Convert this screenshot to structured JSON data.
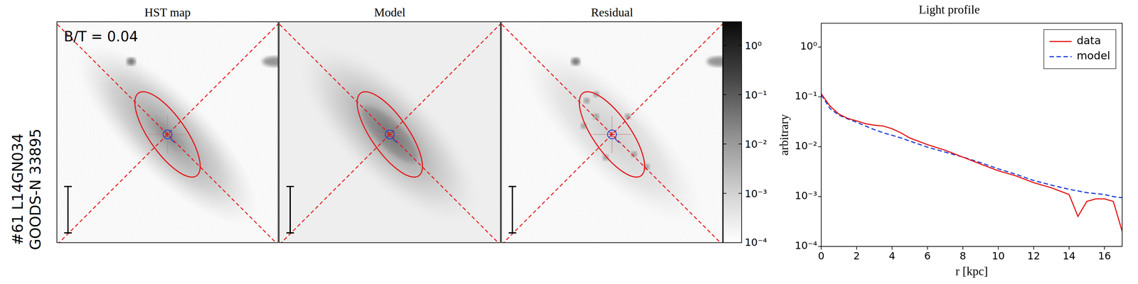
{
  "figure": {
    "row_label": [
      "#61  L14GN034",
      "GOODS-N 33895"
    ],
    "panels": [
      {
        "title": "HST map",
        "annotation": "B/T = 0.04"
      },
      {
        "title": "Model"
      },
      {
        "title": "Residual"
      }
    ],
    "colorbar": {
      "range": [
        0.0001,
        3
      ],
      "log": true,
      "ticks": [
        {
          "value": 1,
          "label": "10⁰"
        },
        {
          "value": 0.1,
          "label": "10⁻¹"
        },
        {
          "value": 0.01,
          "label": "10⁻²"
        },
        {
          "value": 0.001,
          "label": "10⁻³"
        },
        {
          "value": 0.0001,
          "label": "10⁻⁴"
        }
      ]
    }
  },
  "chart_data": {
    "type": "line",
    "title": "Light profile",
    "x_label": "r [kpc]",
    "y_label": "arbitrary",
    "x": [
      0,
      0.5,
      1,
      1.5,
      2,
      2.5,
      3,
      3.5,
      4,
      4.5,
      5,
      6,
      7,
      8,
      9,
      10,
      11,
      12,
      13,
      14,
      14.5,
      15,
      15.5,
      16,
      16.5,
      17
    ],
    "series": [
      {
        "name": "data",
        "color": "#e41a1c",
        "line_style": "solid",
        "values": [
          0.115,
          0.065,
          0.045,
          0.037,
          0.033,
          0.029,
          0.027,
          0.026,
          0.023,
          0.019,
          0.015,
          0.011,
          0.0085,
          0.0062,
          0.0045,
          0.0033,
          0.0026,
          0.0019,
          0.0015,
          0.0011,
          0.0004,
          0.0008,
          0.0009,
          0.0009,
          0.0008,
          0.0002
        ]
      },
      {
        "name": "model",
        "color": "#1a3fd6",
        "line_style": "dashed",
        "values": [
          0.11,
          0.058,
          0.043,
          0.036,
          0.031,
          0.026,
          0.022,
          0.019,
          0.017,
          0.015,
          0.013,
          0.0098,
          0.0078,
          0.0062,
          0.0048,
          0.0036,
          0.0028,
          0.0021,
          0.0017,
          0.0014,
          0.0013,
          0.0012,
          0.00115,
          0.0011,
          0.001,
          0.00095
        ]
      }
    ],
    "xlim": [
      0,
      17
    ],
    "xticks": [
      0,
      2,
      4,
      6,
      8,
      10,
      12,
      14,
      16
    ],
    "ylim": [
      0.0001,
      3
    ],
    "yticks": [
      {
        "value": 0.0001,
        "label": "10⁻⁴"
      },
      {
        "value": 0.001,
        "label": "10⁻³"
      },
      {
        "value": 0.01,
        "label": "10⁻²"
      },
      {
        "value": 0.1,
        "label": "10⁻¹"
      },
      {
        "value": 1,
        "label": "10⁰"
      }
    ],
    "log": "y",
    "grid": false,
    "legend": "upper right"
  }
}
